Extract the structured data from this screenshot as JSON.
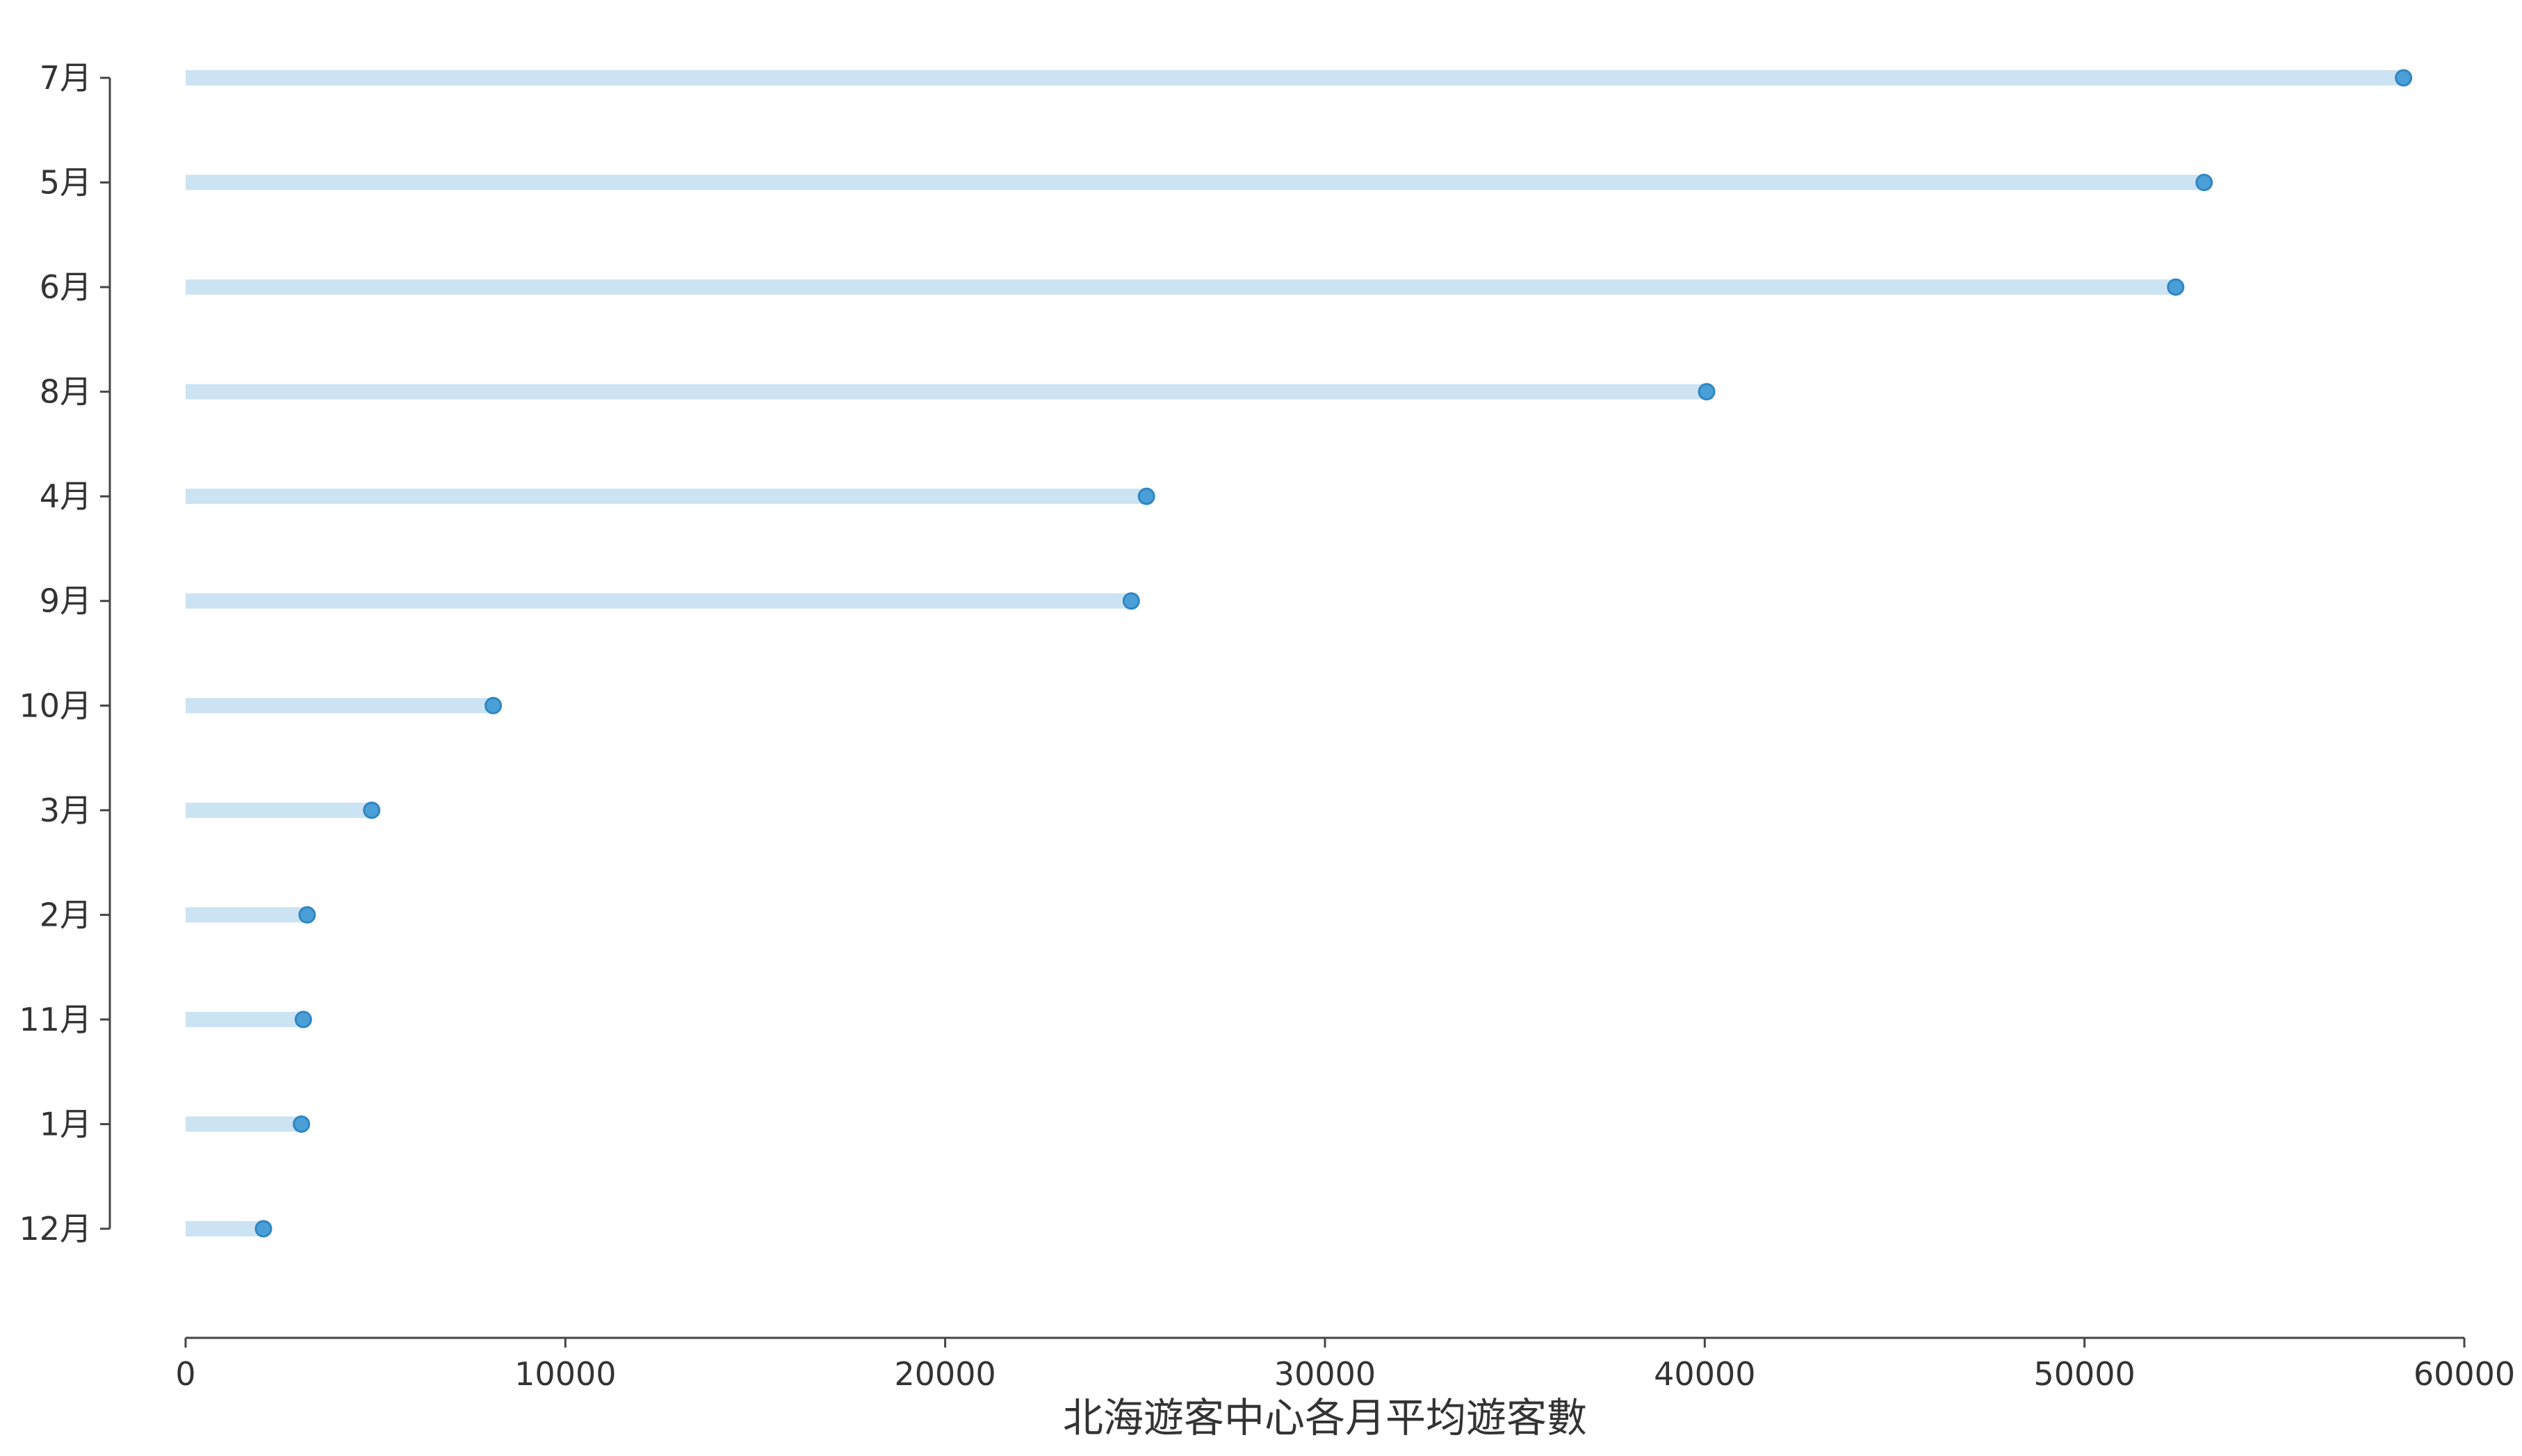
{
  "chart_data": {
    "type": "lollipop",
    "orientation": "horizontal",
    "title": "",
    "xlabel": "北海遊客中心各月平均遊客數",
    "ylabel": "",
    "xlim": [
      0,
      60000
    ],
    "xticks": [
      0,
      10000,
      20000,
      30000,
      40000,
      50000,
      60000
    ],
    "grid": false,
    "categories": [
      "7月",
      "5月",
      "6月",
      "8月",
      "4月",
      "9月",
      "10月",
      "3月",
      "2月",
      "11月",
      "1月",
      "12月"
    ],
    "values": [
      58400,
      53150,
      52400,
      40050,
      25300,
      24900,
      8100,
      4900,
      3200,
      3100,
      3050,
      2050
    ],
    "colors": {
      "stem": "#cce3f3",
      "marker": "#4a9fd6",
      "marker_edge": "#2f86c3",
      "axis": "#444444"
    }
  }
}
